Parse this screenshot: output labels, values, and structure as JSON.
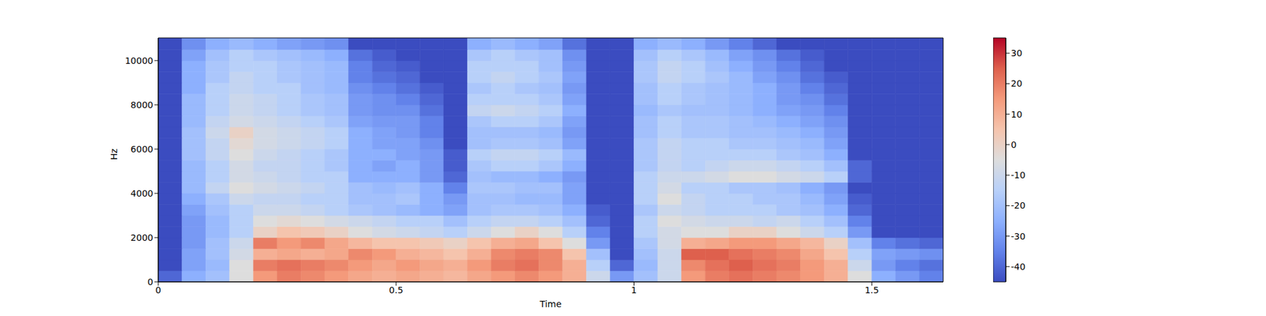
{
  "chart_data": {
    "type": "heatmap",
    "xlabel": "Time",
    "ylabel": "Hz",
    "xlim": [
      0,
      1.65
    ],
    "ylim": [
      0,
      11025
    ],
    "xticks": [
      0,
      0.5,
      1,
      1.5
    ],
    "yticks": [
      0,
      2000,
      4000,
      6000,
      8000,
      10000
    ],
    "x_edges": [
      0,
      0.05,
      0.1,
      0.15,
      0.2,
      0.25,
      0.3,
      0.35,
      0.4,
      0.45,
      0.5,
      0.55,
      0.6,
      0.65,
      0.7,
      0.75,
      0.8,
      0.85,
      0.9,
      0.95,
      1,
      1.05,
      1.1,
      1.15,
      1.2,
      1.25,
      1.3,
      1.35,
      1.4,
      1.45,
      1.5,
      1.55,
      1.6,
      1.65
    ],
    "y_edges": [
      0,
      500,
      1000,
      1500,
      2000,
      2500,
      3000,
      3500,
      4000,
      4500,
      5000,
      5500,
      6000,
      6500,
      7000,
      7500,
      8000,
      8500,
      9000,
      9500,
      10000,
      10500,
      11025
    ],
    "values": [
      [
        -40,
        -25,
        -20,
        -5,
        15,
        20,
        18,
        15,
        12,
        10,
        12,
        10,
        8,
        12,
        15,
        18,
        15,
        10,
        -10,
        -30,
        -20,
        -10,
        15,
        20,
        22,
        20,
        18,
        15,
        10,
        -5,
        -25,
        -30,
        -35
      ],
      [
        -45,
        -28,
        -22,
        -5,
        20,
        22,
        20,
        18,
        15,
        12,
        15,
        12,
        10,
        15,
        20,
        22,
        18,
        10,
        -15,
        -40,
        -22,
        -10,
        18,
        22,
        25,
        22,
        20,
        15,
        10,
        -10,
        -30,
        -35,
        -38
      ],
      [
        -45,
        -28,
        -20,
        -8,
        10,
        12,
        10,
        12,
        18,
        15,
        10,
        8,
        5,
        10,
        18,
        20,
        18,
        5,
        -20,
        -45,
        -20,
        -10,
        25,
        25,
        22,
        20,
        18,
        12,
        5,
        -15,
        -28,
        -30,
        -32
      ],
      [
        -45,
        -30,
        -20,
        -10,
        20,
        15,
        18,
        12,
        8,
        5,
        5,
        3,
        0,
        5,
        10,
        12,
        5,
        -5,
        -30,
        -45,
        -18,
        -8,
        10,
        12,
        15,
        15,
        12,
        8,
        0,
        -20,
        -35,
        -38,
        -40
      ],
      [
        -45,
        -30,
        -22,
        -15,
        0,
        5,
        3,
        0,
        -5,
        -8,
        -10,
        -12,
        -15,
        -10,
        -5,
        0,
        -5,
        -15,
        -35,
        -45,
        -15,
        -8,
        -5,
        -5,
        0,
        0,
        -5,
        -10,
        -15,
        -30,
        -45,
        -45,
        -45
      ],
      [
        -45,
        -30,
        -22,
        -15,
        -5,
        -3,
        -5,
        -8,
        -10,
        -12,
        -15,
        -15,
        -20,
        -15,
        -12,
        -12,
        -15,
        -20,
        -40,
        -45,
        -15,
        -5,
        -8,
        -10,
        -10,
        -12,
        -10,
        -15,
        -20,
        -35,
        -45,
        -45,
        -45
      ],
      [
        -45,
        -28,
        -20,
        -15,
        -10,
        -10,
        -12,
        -15,
        -18,
        -20,
        -22,
        -25,
        -28,
        -20,
        -18,
        -18,
        -20,
        -25,
        -42,
        -45,
        -18,
        -10,
        -12,
        -15,
        -15,
        -15,
        -18,
        -20,
        -25,
        -40,
        -45,
        -45,
        -45
      ],
      [
        -45,
        -25,
        -18,
        -10,
        -12,
        -12,
        -15,
        -15,
        -20,
        -20,
        -18,
        -25,
        -30,
        -20,
        -20,
        -22,
        -22,
        -28,
        -45,
        -45,
        -15,
        -5,
        -12,
        -15,
        -15,
        -18,
        -18,
        -22,
        -28,
        -42,
        -45,
        -45,
        -45
      ],
      [
        -45,
        -22,
        -12,
        -5,
        -8,
        -10,
        -12,
        -15,
        -20,
        -22,
        -20,
        -25,
        -35,
        -18,
        -18,
        -20,
        -20,
        -28,
        -45,
        -45,
        -15,
        -8,
        -15,
        -15,
        -18,
        -18,
        -20,
        -25,
        -30,
        -45,
        -45,
        -45,
        -45
      ],
      [
        -45,
        -22,
        -15,
        -8,
        -10,
        -12,
        -15,
        -15,
        -25,
        -25,
        -25,
        -30,
        -40,
        -20,
        -22,
        -22,
        -25,
        -30,
        -45,
        -45,
        -15,
        -10,
        -10,
        -8,
        -5,
        -5,
        -8,
        -10,
        -15,
        -40,
        -45,
        -45,
        -45
      ],
      [
        -45,
        -22,
        -15,
        -8,
        -12,
        -12,
        -15,
        -18,
        -25,
        -28,
        -25,
        -30,
        -42,
        -18,
        -15,
        -15,
        -18,
        -25,
        -45,
        -45,
        -18,
        -12,
        -15,
        -12,
        -10,
        -10,
        -12,
        -15,
        -20,
        -40,
        -45,
        -45,
        -45
      ],
      [
        -45,
        -20,
        -12,
        -5,
        -10,
        -12,
        -15,
        -18,
        -25,
        -25,
        -28,
        -30,
        -42,
        -15,
        -12,
        -12,
        -15,
        -22,
        -45,
        -45,
        -18,
        -12,
        -15,
        -15,
        -15,
        -15,
        -18,
        -20,
        -25,
        -45,
        -45,
        -45,
        -45
      ],
      [
        -45,
        -20,
        -12,
        -3,
        -8,
        -10,
        -12,
        -15,
        -25,
        -28,
        -28,
        -32,
        -45,
        -20,
        -18,
        -18,
        -20,
        -28,
        -45,
        -45,
        -18,
        -12,
        -15,
        -15,
        -18,
        -18,
        -20,
        -22,
        -28,
        -45,
        -45,
        -45,
        -45
      ],
      [
        -45,
        -20,
        -10,
        0,
        -8,
        -10,
        -12,
        -15,
        -25,
        -28,
        -30,
        -35,
        -45,
        -20,
        -20,
        -20,
        -22,
        -30,
        -45,
        -45,
        -20,
        -15,
        -18,
        -18,
        -20,
        -20,
        -22,
        -25,
        -30,
        -45,
        -45,
        -45,
        -45
      ],
      [
        -45,
        -22,
        -12,
        -8,
        -10,
        -12,
        -15,
        -18,
        -28,
        -30,
        -30,
        -35,
        -45,
        -18,
        -15,
        -15,
        -18,
        -28,
        -45,
        -45,
        -20,
        -15,
        -18,
        -18,
        -20,
        -22,
        -25,
        -28,
        -32,
        -45,
        -45,
        -45,
        -45
      ],
      [
        -45,
        -22,
        -15,
        -10,
        -12,
        -15,
        -18,
        -20,
        -30,
        -32,
        -32,
        -38,
        -45,
        -12,
        -10,
        -12,
        -15,
        -25,
        -45,
        -45,
        -22,
        -18,
        -20,
        -20,
        -22,
        -25,
        -28,
        -30,
        -35,
        -45,
        -45,
        -45,
        -45
      ],
      [
        -45,
        -22,
        -15,
        -10,
        -12,
        -15,
        -18,
        -20,
        -30,
        -32,
        -35,
        -40,
        -45,
        -15,
        -15,
        -15,
        -18,
        -28,
        -45,
        -45,
        -20,
        -15,
        -18,
        -20,
        -22,
        -25,
        -30,
        -32,
        -38,
        -45,
        -45,
        -45,
        -45
      ],
      [
        -45,
        -25,
        -15,
        -12,
        -15,
        -15,
        -20,
        -22,
        -32,
        -35,
        -38,
        -42,
        -45,
        -18,
        -15,
        -18,
        -20,
        -30,
        -45,
        -45,
        -20,
        -15,
        -18,
        -20,
        -22,
        -25,
        -30,
        -35,
        -40,
        -45,
        -45,
        -45,
        -45
      ],
      [
        -45,
        -25,
        -18,
        -12,
        -15,
        -18,
        -20,
        -22,
        -35,
        -38,
        -40,
        -45,
        -45,
        -15,
        -12,
        -15,
        -18,
        -28,
        -45,
        -45,
        -18,
        -12,
        -15,
        -18,
        -22,
        -28,
        -32,
        -38,
        -42,
        -45,
        -45,
        -45,
        -45
      ],
      [
        -45,
        -25,
        -18,
        -15,
        -15,
        -18,
        -20,
        -22,
        -35,
        -40,
        -42,
        -45,
        -45,
        -15,
        -15,
        -15,
        -20,
        -30,
        -45,
        -45,
        -18,
        -12,
        -15,
        -20,
        -25,
        -30,
        -35,
        -40,
        -45,
        -45,
        -45,
        -45,
        -45
      ],
      [
        -45,
        -28,
        -20,
        -15,
        -18,
        -20,
        -22,
        -25,
        -38,
        -42,
        -45,
        -45,
        -45,
        -18,
        -15,
        -18,
        -20,
        -32,
        -45,
        -45,
        -20,
        -15,
        -18,
        -22,
        -28,
        -32,
        -38,
        -42,
        -45,
        -45,
        -45,
        -45,
        -45
      ],
      [
        -45,
        -32,
        -25,
        -22,
        -25,
        -28,
        -30,
        -32,
        -45,
        -45,
        -45,
        -45,
        -45,
        -25,
        -22,
        -25,
        -28,
        -38,
        -45,
        -45,
        -25,
        -22,
        -25,
        -30,
        -35,
        -40,
        -45,
        -45,
        -45,
        -45,
        -45,
        -45,
        -45
      ]
    ],
    "colorbar": {
      "range": [
        -45,
        35
      ],
      "ticks": [
        -40,
        -30,
        -20,
        -10,
        0,
        10,
        20,
        30
      ]
    }
  }
}
